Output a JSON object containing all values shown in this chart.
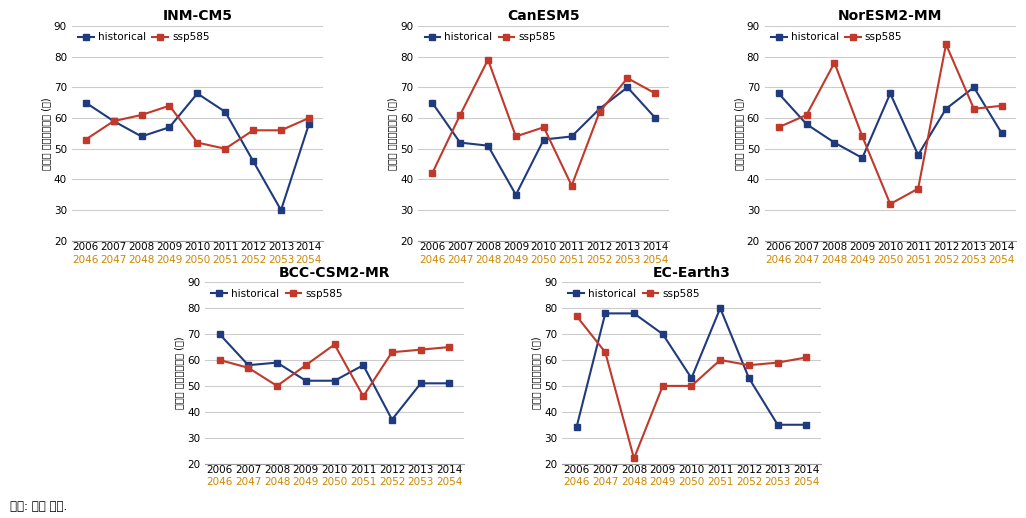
{
  "x_labels_top": [
    "2006",
    "2007",
    "2008",
    "2009",
    "2010",
    "2011",
    "2012",
    "2013",
    "2014"
  ],
  "x_labels_bottom": [
    "2046",
    "2047",
    "2048",
    "2049",
    "2050",
    "2051",
    "2052",
    "2053",
    "2054"
  ],
  "subplots": [
    {
      "title": "INM-CM5",
      "historical": [
        65,
        59,
        54,
        57,
        68,
        62,
        46,
        30,
        58
      ],
      "ssp585": [
        53,
        59,
        61,
        64,
        52,
        50,
        56,
        56,
        60
      ]
    },
    {
      "title": "CanESM5",
      "historical": [
        65,
        52,
        51,
        35,
        53,
        54,
        63,
        70,
        60
      ],
      "ssp585": [
        42,
        61,
        79,
        54,
        57,
        38,
        62,
        73,
        68
      ]
    },
    {
      "title": "NorESM2-MM",
      "historical": [
        68,
        58,
        52,
        47,
        68,
        48,
        63,
        70,
        55
      ],
      "ssp585": [
        57,
        61,
        78,
        54,
        32,
        37,
        84,
        63,
        64
      ]
    },
    {
      "title": "BCC-CSM2-MR",
      "historical": [
        70,
        58,
        59,
        52,
        52,
        58,
        37,
        51,
        51
      ],
      "ssp585": [
        60,
        57,
        50,
        58,
        66,
        46,
        63,
        64,
        65
      ]
    },
    {
      "title": "EC-Earth3",
      "historical": [
        34,
        78,
        78,
        70,
        53,
        80,
        53,
        35,
        35
      ],
      "ssp585": [
        77,
        63,
        22,
        50,
        50,
        60,
        58,
        59,
        61
      ]
    }
  ],
  "historical_color": "#1F3A7D",
  "ssp585_color": "#C0392B",
  "ylabel": "연도별 고농도빈도수 (일)",
  "ylim": [
    20,
    90
  ],
  "yticks": [
    20,
    30,
    40,
    50,
    60,
    70,
    80,
    90
  ],
  "bottom_label_color": "#CC8800",
  "footnote": "자료: 저자 작성.",
  "background_color": "#FFFFFF",
  "grid_color": "#CCCCCC"
}
